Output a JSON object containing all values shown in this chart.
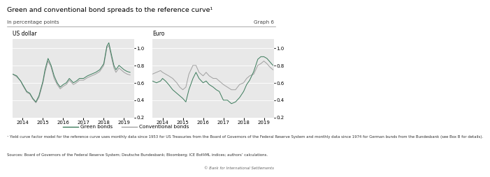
{
  "title": "Green and conventional bond spreads to the reference curve¹",
  "subtitle_left": "In percentage points",
  "subtitle_right": "Graph 6",
  "panel_left_label": "US dollar",
  "panel_right_label": "Euro",
  "legend_green": "Green bonds",
  "legend_conventional": "Conventional bonds",
  "footnote1": "¹ Yield curve factor model for the reference curve uses monthly data since 1953 for US Treasuries from the Board of Governors of the Federal Reserve System and monthly data since 1974 for German bunds from the Bundesbank (see Box B for details).",
  "footnote2": "Sources: Board of Governors of the Federal Reserve System; Deutsche Bundesbank; Bloomberg; ICE BofAML indices; authors’ calculations.",
  "footnote3": "© Bank for International Settlements",
  "ylim": [
    0.2,
    1.1
  ],
  "yticks": [
    0.2,
    0.4,
    0.6,
    0.8,
    1.0
  ],
  "color_green": "#3a7a5a",
  "color_grey": "#a0a0a0",
  "bg_color": "#e8e8e8",
  "us_green_x": [
    2013.5,
    2013.7,
    2013.9,
    2014.0,
    2014.1,
    2014.2,
    2014.35,
    2014.5,
    2014.65,
    2014.8,
    2015.0,
    2015.1,
    2015.25,
    2015.4,
    2015.55,
    2015.7,
    2015.85,
    2016.0,
    2016.15,
    2016.3,
    2016.5,
    2016.65,
    2016.8,
    2017.0,
    2017.2,
    2017.4,
    2017.6,
    2017.8,
    2018.0,
    2018.15,
    2018.25,
    2018.4,
    2018.5,
    2018.6,
    2018.75,
    2018.85,
    2019.0,
    2019.15,
    2019.3
  ],
  "us_green_y": [
    0.7,
    0.68,
    0.62,
    0.58,
    0.54,
    0.5,
    0.48,
    0.42,
    0.38,
    0.45,
    0.62,
    0.75,
    0.88,
    0.8,
    0.68,
    0.6,
    0.55,
    0.58,
    0.6,
    0.65,
    0.6,
    0.62,
    0.65,
    0.65,
    0.68,
    0.7,
    0.72,
    0.75,
    0.82,
    1.02,
    1.06,
    0.9,
    0.8,
    0.75,
    0.8,
    0.78,
    0.75,
    0.73,
    0.72
  ],
  "us_conv_x": [
    2013.5,
    2013.7,
    2013.9,
    2014.0,
    2014.1,
    2014.2,
    2014.35,
    2014.5,
    2014.65,
    2014.8,
    2015.0,
    2015.1,
    2015.25,
    2015.4,
    2015.55,
    2015.7,
    2015.85,
    2016.0,
    2016.15,
    2016.3,
    2016.5,
    2016.65,
    2016.8,
    2017.0,
    2017.2,
    2017.4,
    2017.6,
    2017.8,
    2018.0,
    2018.15,
    2018.25,
    2018.4,
    2018.5,
    2018.6,
    2018.75,
    2018.85,
    2019.0,
    2019.15,
    2019.3
  ],
  "us_conv_y": [
    0.7,
    0.67,
    0.62,
    0.57,
    0.53,
    0.49,
    0.47,
    0.41,
    0.37,
    0.43,
    0.6,
    0.72,
    0.85,
    0.78,
    0.65,
    0.58,
    0.53,
    0.56,
    0.58,
    0.63,
    0.58,
    0.6,
    0.63,
    0.63,
    0.66,
    0.68,
    0.7,
    0.73,
    0.8,
    1.0,
    1.03,
    0.87,
    0.77,
    0.72,
    0.77,
    0.75,
    0.72,
    0.7,
    0.69
  ],
  "eu_green_x": [
    2013.5,
    2013.7,
    2013.9,
    2014.0,
    2014.15,
    2014.3,
    2014.5,
    2014.7,
    2014.85,
    2015.0,
    2015.15,
    2015.3,
    2015.5,
    2015.65,
    2015.8,
    2016.0,
    2016.15,
    2016.3,
    2016.5,
    2016.65,
    2016.8,
    2017.0,
    2017.2,
    2017.4,
    2017.6,
    2017.8,
    2018.0,
    2018.15,
    2018.3,
    2018.5,
    2018.7,
    2018.85,
    2019.0,
    2019.15,
    2019.3,
    2019.45
  ],
  "eu_green_y": [
    0.62,
    0.6,
    0.62,
    0.65,
    0.62,
    0.58,
    0.52,
    0.48,
    0.45,
    0.42,
    0.38,
    0.52,
    0.65,
    0.72,
    0.65,
    0.6,
    0.62,
    0.58,
    0.55,
    0.52,
    0.5,
    0.4,
    0.4,
    0.36,
    0.38,
    0.43,
    0.5,
    0.58,
    0.63,
    0.73,
    0.87,
    0.9,
    0.9,
    0.88,
    0.84,
    0.8
  ],
  "eu_conv_x": [
    2013.5,
    2013.7,
    2013.9,
    2014.0,
    2014.15,
    2014.3,
    2014.5,
    2014.7,
    2014.85,
    2015.0,
    2015.15,
    2015.3,
    2015.5,
    2015.65,
    2015.8,
    2016.0,
    2016.15,
    2016.3,
    2016.5,
    2016.65,
    2016.8,
    2017.0,
    2017.2,
    2017.4,
    2017.6,
    2017.8,
    2018.0,
    2018.15,
    2018.3,
    2018.5,
    2018.7,
    2018.85,
    2019.0,
    2019.15,
    2019.3,
    2019.45
  ],
  "eu_conv_y": [
    0.7,
    0.72,
    0.74,
    0.72,
    0.7,
    0.68,
    0.65,
    0.6,
    0.55,
    0.52,
    0.55,
    0.7,
    0.8,
    0.8,
    0.72,
    0.68,
    0.72,
    0.68,
    0.65,
    0.65,
    0.62,
    0.58,
    0.55,
    0.52,
    0.52,
    0.58,
    0.6,
    0.65,
    0.68,
    0.7,
    0.8,
    0.82,
    0.85,
    0.82,
    0.78,
    0.75
  ],
  "xmin": 2013.5,
  "xmax": 2019.5,
  "xtick_positions": [
    2014,
    2015,
    2016,
    2017,
    2018,
    2019
  ],
  "xtick_labels": [
    "2014",
    "2015",
    "2016",
    "2017",
    "2018",
    "2019"
  ]
}
